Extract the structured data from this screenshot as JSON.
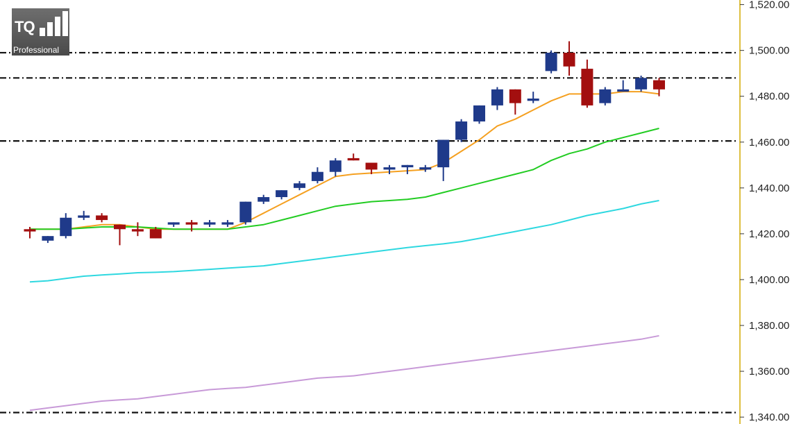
{
  "logo": {
    "brand": "TQ",
    "subtitle": "Professional"
  },
  "colors": {
    "up_candle": "#1f3a8a",
    "down_candle": "#a30f0f",
    "ma_fast": "#f5a020",
    "ma_mid": "#22cc22",
    "ma_slow": "#2ed8e0",
    "ma_long": "#c89ad8",
    "level_line": "#111111",
    "axis_line": "#d4aa00"
  },
  "chart_data": {
    "type": "candlestick",
    "title": "",
    "ylim": [
      1337,
      1522
    ],
    "y_ticks": [
      "1,520.00",
      "1,500.00",
      "1,480.00",
      "1,460.00",
      "1,440.00",
      "1,420.00",
      "1,400.00",
      "1,380.00",
      "1,360.00",
      "1,340.00"
    ],
    "y_tick_values": [
      1520,
      1500,
      1480,
      1460,
      1440,
      1420,
      1400,
      1380,
      1360,
      1340
    ],
    "horizontal_levels": [
      1499,
      1488,
      1460.5,
      1342
    ],
    "candles": [
      {
        "o": 1422,
        "h": 1423,
        "l": 1418,
        "c": 1421
      },
      {
        "o": 1417,
        "h": 1419,
        "l": 1416,
        "c": 1419
      },
      {
        "o": 1419,
        "h": 1429,
        "l": 1418,
        "c": 1427
      },
      {
        "o": 1427,
        "h": 1430,
        "l": 1426,
        "c": 1428
      },
      {
        "o": 1428,
        "h": 1429,
        "l": 1425,
        "c": 1426
      },
      {
        "o": 1424,
        "h": 1424,
        "l": 1415,
        "c": 1422
      },
      {
        "o": 1422,
        "h": 1425,
        "l": 1419,
        "c": 1421
      },
      {
        "o": 1422,
        "h": 1423,
        "l": 1418,
        "c": 1418
      },
      {
        "o": 1424,
        "h": 1425,
        "l": 1423,
        "c": 1425
      },
      {
        "o": 1425,
        "h": 1426,
        "l": 1421,
        "c": 1424
      },
      {
        "o": 1424,
        "h": 1426,
        "l": 1423,
        "c": 1425
      },
      {
        "o": 1424,
        "h": 1426,
        "l": 1423,
        "c": 1425
      },
      {
        "o": 1425,
        "h": 1434,
        "l": 1424,
        "c": 1434
      },
      {
        "o": 1434,
        "h": 1437,
        "l": 1433,
        "c": 1436
      },
      {
        "o": 1436,
        "h": 1439,
        "l": 1435,
        "c": 1439
      },
      {
        "o": 1440,
        "h": 1443,
        "l": 1439,
        "c": 1442
      },
      {
        "o": 1443,
        "h": 1449,
        "l": 1442,
        "c": 1447
      },
      {
        "o": 1447,
        "h": 1453,
        "l": 1445,
        "c": 1452
      },
      {
        "o": 1453,
        "h": 1455,
        "l": 1452,
        "c": 1452
      },
      {
        "o": 1451,
        "h": 1451,
        "l": 1446,
        "c": 1448
      },
      {
        "o": 1448,
        "h": 1450,
        "l": 1446,
        "c": 1449
      },
      {
        "o": 1449,
        "h": 1450,
        "l": 1446,
        "c": 1450
      },
      {
        "o": 1448,
        "h": 1450,
        "l": 1447,
        "c": 1449
      },
      {
        "o": 1449,
        "h": 1461,
        "l": 1443,
        "c": 1461
      },
      {
        "o": 1461,
        "h": 1470,
        "l": 1460,
        "c": 1469
      },
      {
        "o": 1469,
        "h": 1476,
        "l": 1468,
        "c": 1476
      },
      {
        "o": 1476,
        "h": 1484,
        "l": 1474,
        "c": 1483
      },
      {
        "o": 1483,
        "h": 1483,
        "l": 1472,
        "c": 1477
      },
      {
        "o": 1478,
        "h": 1482,
        "l": 1477,
        "c": 1479
      },
      {
        "o": 1491,
        "h": 1500,
        "l": 1490,
        "c": 1499
      },
      {
        "o": 1499,
        "h": 1504,
        "l": 1489,
        "c": 1493
      },
      {
        "o": 1492,
        "h": 1496,
        "l": 1475,
        "c": 1476
      },
      {
        "o": 1477,
        "h": 1484,
        "l": 1476,
        "c": 1483
      },
      {
        "o": 1482,
        "h": 1487,
        "l": 1482,
        "c": 1483
      },
      {
        "o": 1483,
        "h": 1489,
        "l": 1482,
        "c": 1488
      },
      {
        "o": 1487,
        "h": 1488,
        "l": 1480,
        "c": 1483
      }
    ],
    "series": [
      {
        "values": [
          1422,
          1422,
          1422,
          1423,
          1424,
          1424,
          1423,
          1422,
          1422,
          1422,
          1422,
          1422,
          1425,
          1429,
          1433,
          1437,
          1441,
          1445,
          1446,
          1446.5,
          1447,
          1447.5,
          1448,
          1451,
          1456,
          1461,
          1467,
          1470,
          1474,
          1478,
          1481,
          1481,
          1481,
          1482,
          1482,
          1481
        ]
      },
      {
        "values": [
          1422,
          1422,
          1422,
          1422.5,
          1423,
          1423,
          1423,
          1422.5,
          1422,
          1422,
          1422,
          1422,
          1423,
          1424,
          1426,
          1428,
          1430,
          1432,
          1433,
          1434,
          1434.5,
          1435,
          1436,
          1438,
          1440,
          1442,
          1444,
          1446,
          1448,
          1452,
          1455,
          1457,
          1460,
          1462,
          1464,
          1466
        ]
      },
      {
        "values": [
          1399,
          1399.5,
          1400.5,
          1401.5,
          1402,
          1402.5,
          1403,
          1403.2,
          1403.5,
          1404,
          1404.5,
          1405,
          1405.5,
          1406,
          1407,
          1408,
          1409,
          1410,
          1411,
          1412,
          1413,
          1414,
          1414.8,
          1415.6,
          1416.6,
          1418,
          1419.5,
          1421,
          1422.5,
          1424,
          1426,
          1428,
          1429.5,
          1431,
          1433,
          1434.5
        ]
      },
      {
        "values": [
          1343,
          1344,
          1345,
          1346,
          1347,
          1347.5,
          1348,
          1349,
          1350,
          1351,
          1352,
          1352.5,
          1353,
          1354,
          1355,
          1356,
          1357,
          1357.5,
          1358,
          1359,
          1360,
          1361,
          1362,
          1363,
          1364,
          1365,
          1366,
          1367,
          1368,
          1369,
          1370,
          1371,
          1372,
          1373,
          1374,
          1375.5
        ]
      }
    ]
  }
}
